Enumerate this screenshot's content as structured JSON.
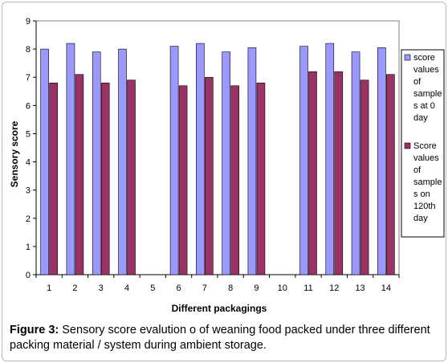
{
  "chart_data": {
    "type": "bar",
    "xlabel": "Different packagings",
    "ylabel": "Sensory score",
    "ylim": [
      0,
      9
    ],
    "yticks": [
      "0",
      "1",
      "2",
      "3",
      "4",
      "5",
      "6",
      "7",
      "8",
      "9"
    ],
    "categories": [
      "1",
      "2",
      "3",
      "4",
      "5",
      "6",
      "7",
      "8",
      "9",
      "10",
      "11",
      "12",
      "13",
      "14"
    ],
    "series": [
      {
        "name": "score values of samples at 0 day",
        "legend_lines": [
          "score",
          "values",
          "of",
          "sample",
          "s at 0",
          "day"
        ],
        "color": "#9999ff",
        "values": [
          8.0,
          8.2,
          7.9,
          8.0,
          null,
          8.1,
          8.2,
          7.9,
          8.05,
          null,
          8.1,
          8.2,
          7.9,
          8.05
        ]
      },
      {
        "name": "Score values of samples on 120th day",
        "legend_lines": [
          "Score",
          "values",
          "of",
          "sample",
          "s on",
          "120th",
          "day"
        ],
        "color": "#993366",
        "values": [
          6.8,
          7.1,
          6.8,
          6.9,
          null,
          6.7,
          7.0,
          6.7,
          6.8,
          null,
          7.2,
          7.2,
          6.9,
          7.1
        ]
      }
    ],
    "legend_position": "right",
    "grid": false
  },
  "caption": {
    "label": "Figure 3:",
    "text": " Sensory score evalution o of weaning food packed under three different packing material / system during  ambient  storage."
  }
}
